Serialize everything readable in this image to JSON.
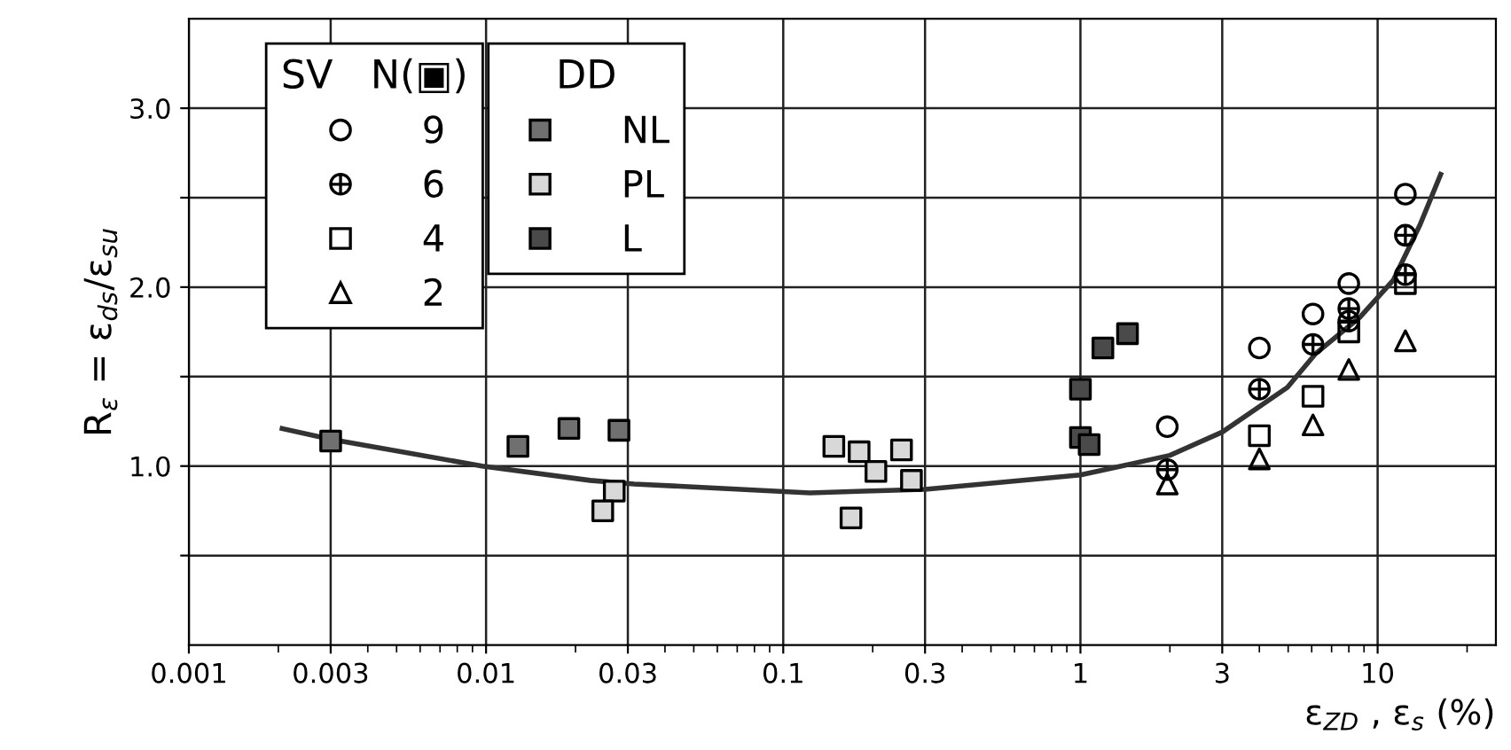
{
  "chart_data": {
    "type": "scatter",
    "xlabel": "ε$_{ZD}$ , ε$_{s}$ (%)",
    "ylabel": "R$_{ε}$ = ε$_{ds}$/ε$_{su}$",
    "annotations": [
      "SV",
      "N(▣)",
      "DD"
    ],
    "log": "x",
    "xlim": [
      0.001,
      25
    ],
    "xticks": [
      0.001,
      0.003,
      0.01,
      0.03,
      0.1,
      0.3,
      1,
      3,
      10
    ],
    "ylim": [
      0,
      3.5
    ],
    "yticks": [
      {
        "value": 0.5,
        "label": null
      },
      {
        "value": 1.0,
        "label": "1.0"
      },
      {
        "value": 1.5,
        "label": null
      },
      {
        "value": 2.0,
        "label": "2.0"
      },
      {
        "value": 2.5,
        "label": null
      },
      {
        "value": 3.0,
        "label": "3.0"
      }
    ],
    "grid": true,
    "legend": "top left",
    "series": [
      {
        "name": "9",
        "marker": "circle",
        "color": "#000000",
        "x": [
          1.96,
          4.0,
          6.06,
          8.0,
          12.4
        ],
        "values": [
          1.22,
          1.66,
          1.85,
          2.02,
          2.52
        ]
      },
      {
        "name": "6",
        "marker": "cross",
        "color": "#000000",
        "x": [
          1.96,
          4.0,
          6.06,
          8.0,
          8.0,
          12.4,
          12.4
        ],
        "values": [
          0.98,
          1.43,
          1.68,
          1.88,
          1.81,
          2.29,
          2.07
        ]
      },
      {
        "name": "4",
        "marker": "square",
        "color": "#000000",
        "x": [
          4.0,
          6.06,
          8.0,
          12.4
        ],
        "values": [
          1.17,
          1.39,
          1.75,
          2.02
        ]
      },
      {
        "name": "2",
        "marker": "triangle",
        "color": "#000000",
        "x": [
          1.96,
          4.0,
          6.06,
          8.0,
          12.4
        ],
        "values": [
          0.9,
          1.04,
          1.23,
          1.54,
          1.7
        ]
      },
      {
        "name": "NL",
        "marker": "square",
        "color": "#707070",
        "x": [
          0.003,
          0.0128,
          0.019,
          0.028
        ],
        "values": [
          1.14,
          1.11,
          1.21,
          1.2
        ]
      },
      {
        "name": "PL",
        "marker": "square",
        "color": "#d8d8d8",
        "x": [
          0.027,
          0.0247,
          0.148,
          0.18,
          0.205,
          0.25,
          0.27,
          0.169
        ],
        "values": [
          0.86,
          0.75,
          1.11,
          1.08,
          0.97,
          1.09,
          0.92,
          0.71
        ]
      },
      {
        "name": "L",
        "marker": "square",
        "color": "#4a4a4a",
        "x": [
          1.0,
          1.0,
          1.07,
          1.19,
          1.44
        ],
        "values": [
          1.43,
          1.16,
          1.12,
          1.66,
          1.74
        ]
      },
      {
        "type": "line",
        "color": "#333333",
        "x": [
          0.00206,
          0.003,
          0.0097,
          0.0224,
          0.0315,
          0.123,
          0.187,
          0.3,
          1,
          2,
          3,
          4.97,
          6.2,
          8.7,
          11.3,
          13.9,
          16.3
        ],
        "values": [
          1.21,
          1.15,
          1.0,
          0.92,
          0.9,
          0.85,
          0.86,
          0.87,
          0.95,
          1.06,
          1.19,
          1.44,
          1.63,
          1.83,
          2.04,
          2.35,
          2.63
        ]
      }
    ]
  }
}
